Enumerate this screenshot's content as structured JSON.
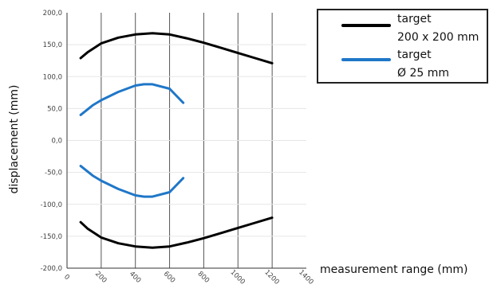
{
  "chart_data": {
    "type": "line",
    "xlabel": "measurement range (mm)",
    "ylabel": "displacement (mm)",
    "xlim": [
      0,
      1400
    ],
    "ylim": [
      -200,
      200
    ],
    "x_ticks": [
      "0",
      "200",
      "400",
      "600",
      "800",
      "1000",
      "1200",
      "1400"
    ],
    "y_ticks": [
      "200,0",
      "150,0",
      "100,0",
      "50,0",
      "0,0",
      "-50,0",
      "-100,0",
      "-150,0",
      "-200,0"
    ],
    "grid": {
      "vertical": true,
      "horizontal": true
    },
    "legend_position": "top-right",
    "series": [
      {
        "name_lines": [
          "target",
          "200 x 200 mm"
        ],
        "color": "#000000",
        "upper": {
          "x": [
            80,
            120,
            200,
            300,
            400,
            500,
            600,
            700,
            800,
            900,
            1000,
            1100,
            1200
          ],
          "y": [
            129,
            138,
            152,
            161,
            166,
            168,
            166,
            160,
            153,
            145,
            137,
            129,
            121
          ]
        },
        "lower": {
          "x": [
            80,
            120,
            200,
            300,
            400,
            500,
            600,
            700,
            800,
            900,
            1000,
            1100,
            1200
          ],
          "y": [
            -128,
            -138,
            -152,
            -161,
            -166,
            -168,
            -166,
            -160,
            -153,
            -145,
            -137,
            -129,
            -121
          ]
        }
      },
      {
        "name_lines": [
          "target",
          "Ø 25 mm"
        ],
        "color": "#1f77c8",
        "upper": {
          "x": [
            80,
            150,
            200,
            300,
            400,
            450,
            500,
            600,
            680
          ],
          "y": [
            40,
            55,
            63,
            76,
            86,
            88,
            88,
            81,
            59
          ]
        },
        "lower": {
          "x": [
            80,
            150,
            200,
            300,
            400,
            450,
            500,
            600,
            680
          ],
          "y": [
            -40,
            -55,
            -63,
            -76,
            -86,
            -88,
            -88,
            -81,
            -59
          ]
        }
      }
    ]
  }
}
